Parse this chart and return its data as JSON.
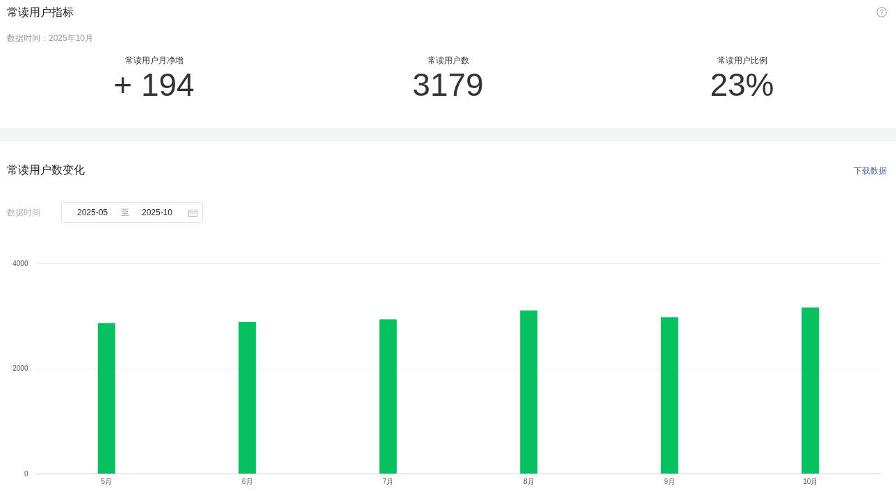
{
  "chart_data": [
    {
      "type": "other",
      "title": "常读用户指标",
      "subtitle": "数据时间：2025年10月",
      "annotations": [
        "常读用户月净增",
        "+ 194",
        "常读用户数",
        "3179",
        "常读用户比例",
        "23%"
      ]
    },
    {
      "type": "bar",
      "title": "常读用户数变化",
      "annotations": [
        "下载数据",
        "数据时间",
        "2025-05",
        "至",
        "2025-10"
      ],
      "categories": [
        "5月",
        "6月",
        "7月",
        "8月",
        "9月",
        "10月"
      ],
      "values": [
        2860,
        2880,
        2930,
        3100,
        2970,
        3160
      ],
      "color": "#07c160",
      "ylim": [
        0,
        4000
      ],
      "yticks": [
        0,
        2000,
        4000
      ],
      "grid": "y"
    }
  ]
}
